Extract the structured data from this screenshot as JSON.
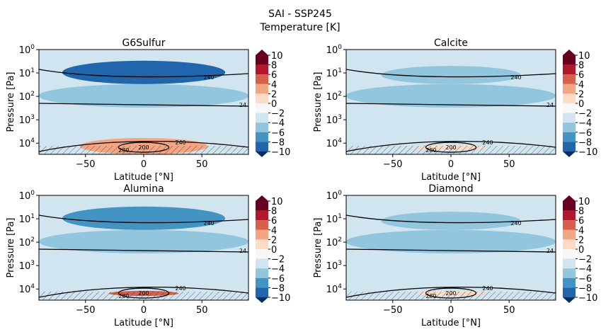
{
  "figure": {
    "title": "SAI - SSP245",
    "subtitle": "Temperature [K]"
  },
  "colors": {
    "level_colors": [
      "#053061",
      "#2166ac",
      "#4393c3",
      "#92c5de",
      "#d1e5f0",
      "#f7f7f7",
      "#fddbc7",
      "#f4a582",
      "#d6604d",
      "#b2182b",
      "#67001f"
    ],
    "contour_line": "#000000",
    "hatch": "#333333"
  },
  "chart_data": [
    {
      "type": "heatmap",
      "title": "G6Sulfur",
      "xlabel": "Latitude [°N]",
      "ylabel": "Pressure [Pa]",
      "xlim": [
        -90,
        90
      ],
      "ylim": [
        30000,
        1
      ],
      "yscale": "log",
      "xticks": [
        -50,
        0,
        50
      ],
      "ytick_labels": [
        "10^0",
        "10^1",
        "10^2",
        "10^3",
        "10^4"
      ],
      "colorbar": {
        "levels": [
          -10,
          -8,
          -6,
          -4,
          -2,
          0,
          2,
          4,
          6,
          8,
          10
        ],
        "tick_labels": [
          "10",
          "8",
          "6",
          "4",
          "2",
          "0",
          "−2",
          "−4",
          "−6",
          "−8",
          "−10"
        ],
        "extend": "both"
      },
      "anomaly_features": [
        {
          "lat_min": -70,
          "lat_max": 70,
          "p_min": 3,
          "p_max": 30,
          "value": -8
        },
        {
          "lat_min": -90,
          "lat_max": 90,
          "p_min": 30,
          "p_max": 300,
          "value": -5
        },
        {
          "lat_min": -30,
          "lat_max": 30,
          "p_min": 10000,
          "p_max": 22000,
          "value": 9
        },
        {
          "lat_min": -55,
          "lat_max": 55,
          "p_min": 6000,
          "p_max": 30000,
          "value": 3
        }
      ],
      "contour_labels": [
        "240",
        "24",
        "200",
        "240",
        "280",
        "80",
        "80"
      ],
      "hatching": "yes"
    },
    {
      "type": "heatmap",
      "title": "Calcite",
      "xlabel": "Latitude [°N]",
      "ylabel": "Pressure [Pa]",
      "xlim": [
        -90,
        90
      ],
      "ylim": [
        30000,
        1
      ],
      "yscale": "log",
      "xticks": [
        -50,
        0,
        50
      ],
      "ytick_labels": [
        "10^0",
        "10^1",
        "10^2",
        "10^3",
        "10^4"
      ],
      "colorbar": {
        "levels": [
          -10,
          -8,
          -6,
          -4,
          -2,
          0,
          2,
          4,
          6,
          8,
          10
        ],
        "tick_labels": [
          "10",
          "8",
          "6",
          "4",
          "2",
          "0",
          "−2",
          "−4",
          "−6",
          "−8",
          "−10"
        ],
        "extend": "both"
      },
      "anomaly_features": [
        {
          "lat_min": -60,
          "lat_max": 60,
          "p_min": 5,
          "p_max": 30,
          "value": -5
        },
        {
          "lat_min": -90,
          "lat_max": 90,
          "p_min": 30,
          "p_max": 300,
          "value": -4
        },
        {
          "lat_min": -30,
          "lat_max": 30,
          "p_min": 12000,
          "p_max": 20000,
          "value": 1
        }
      ],
      "contour_labels": [
        "240",
        "24",
        "200",
        "240",
        "280",
        "80"
      ],
      "hatching": "yes"
    },
    {
      "type": "heatmap",
      "title": "Alumina",
      "xlabel": "Latitude [°N]",
      "ylabel": "Pressure [Pa]",
      "xlim": [
        -90,
        90
      ],
      "ylim": [
        30000,
        1
      ],
      "yscale": "log",
      "xticks": [
        -50,
        0,
        50
      ],
      "ytick_labels": [
        "10^0",
        "10^1",
        "10^2",
        "10^3",
        "10^4"
      ],
      "colorbar": {
        "levels": [
          -10,
          -8,
          -6,
          -4,
          -2,
          0,
          2,
          4,
          6,
          8,
          10
        ],
        "tick_labels": [
          "10",
          "8",
          "6",
          "4",
          "2",
          "0",
          "−2",
          "−4",
          "−6",
          "−8",
          "−10"
        ],
        "extend": "both"
      },
      "anomaly_features": [
        {
          "lat_min": -70,
          "lat_max": 70,
          "p_min": 3,
          "p_max": 30,
          "value": -6
        },
        {
          "lat_min": -90,
          "lat_max": 90,
          "p_min": 30,
          "p_max": 300,
          "value": -5
        },
        {
          "lat_min": -30,
          "lat_max": 30,
          "p_min": 12000,
          "p_max": 20000,
          "value": 5
        }
      ],
      "contour_labels": [
        "240",
        "24",
        "200",
        "240",
        "280",
        "80"
      ],
      "hatching": "yes"
    },
    {
      "type": "heatmap",
      "title": "Diamond",
      "xlabel": "Latitude [°N]",
      "ylabel": "Pressure [Pa]",
      "xlim": [
        -90,
        90
      ],
      "ylim": [
        30000,
        1
      ],
      "yscale": "log",
      "xticks": [
        -50,
        0,
        50
      ],
      "ytick_labels": [
        "10^0",
        "10^1",
        "10^2",
        "10^3",
        "10^4"
      ],
      "colorbar": {
        "levels": [
          -10,
          -8,
          -6,
          -4,
          -2,
          0,
          2,
          4,
          6,
          8,
          10
        ],
        "tick_labels": [
          "10",
          "8",
          "6",
          "4",
          "2",
          "0",
          "−2",
          "−4",
          "−6",
          "−8",
          "−10"
        ],
        "extend": "both"
      },
      "anomaly_features": [
        {
          "lat_min": -60,
          "lat_max": 60,
          "p_min": 5,
          "p_max": 30,
          "value": -5
        },
        {
          "lat_min": -90,
          "lat_max": 90,
          "p_min": 30,
          "p_max": 300,
          "value": -4
        },
        {
          "lat_min": -30,
          "lat_max": 30,
          "p_min": 12000,
          "p_max": 20000,
          "value": 1
        }
      ],
      "contour_labels": [
        "240",
        "24",
        "200",
        "240",
        "280"
      ],
      "hatching": "yes"
    }
  ]
}
